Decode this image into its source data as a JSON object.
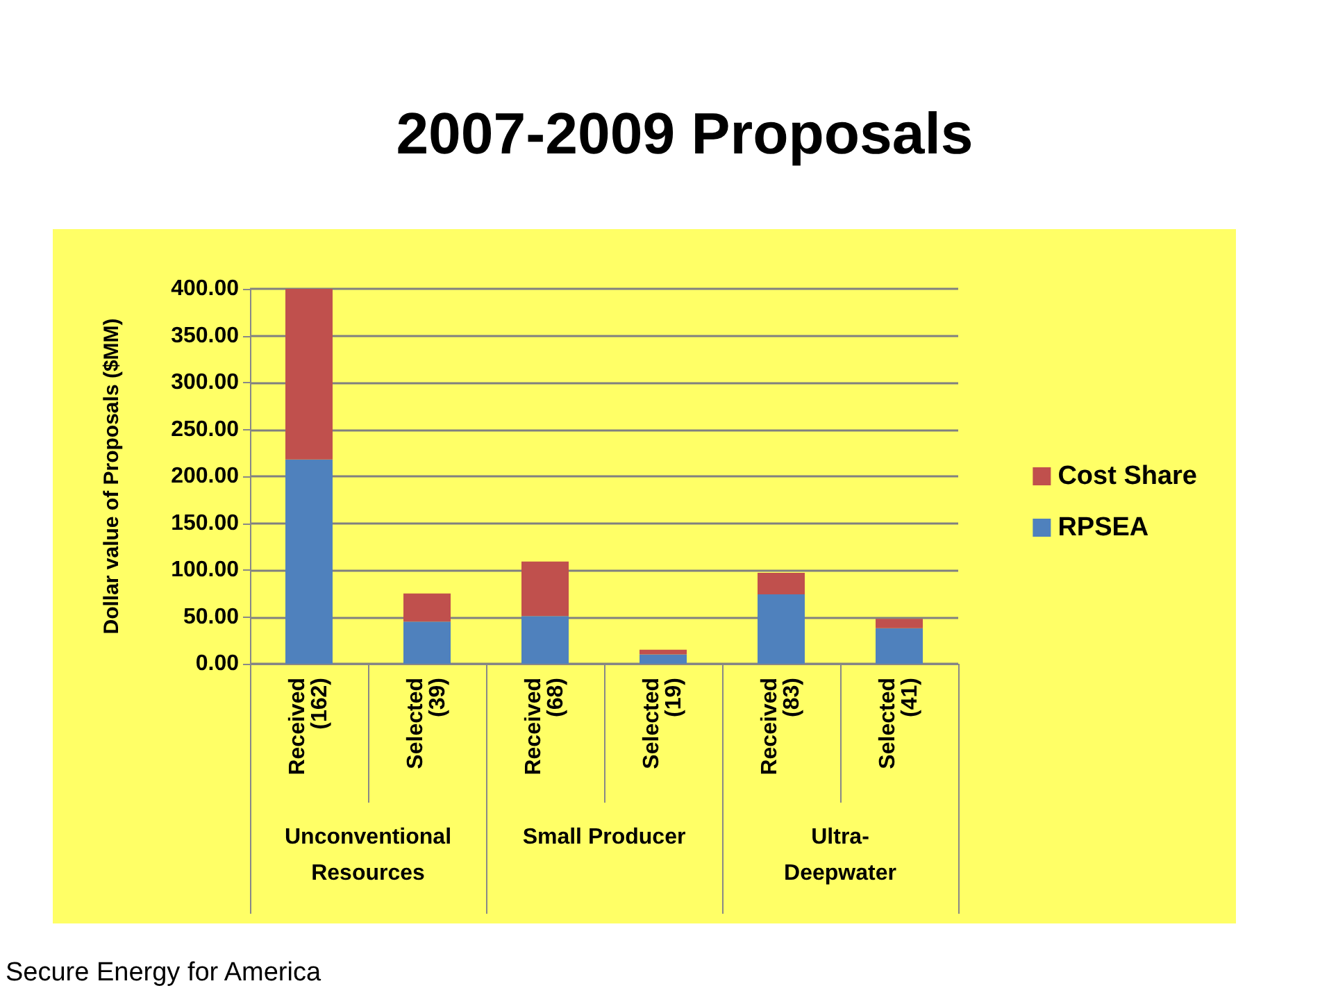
{
  "chart_data": {
    "type": "bar",
    "title": "2007-2009 Proposals",
    "ylabel": "Dollar value of Proposals ($MM)",
    "categories": [
      "Received\n(162)",
      "Selected\n(39)",
      "Received\n(68)",
      "Selected\n(19)",
      "Received\n(83)",
      "Selected\n(41)"
    ],
    "series": [
      {
        "name": "RPSEA",
        "color": "#4f81bd",
        "values": [
          218,
          45,
          51,
          10,
          74,
          38
        ]
      },
      {
        "name": "Cost Share",
        "color": "#c0504d",
        "values": [
          182,
          30,
          58,
          5,
          23,
          10
        ]
      }
    ],
    "stacked": true,
    "ylim": [
      0,
      400
    ],
    "yticks": [
      {
        "value": 0,
        "label": "0.00"
      },
      {
        "value": 50,
        "label": "50.00"
      },
      {
        "value": 100,
        "label": "100.00"
      },
      {
        "value": 150,
        "label": "150.00"
      },
      {
        "value": 200,
        "label": "200.00"
      },
      {
        "value": 250,
        "label": "250.00"
      },
      {
        "value": 300,
        "label": "300.00"
      },
      {
        "value": 350,
        "label": "350.00"
      },
      {
        "value": 400,
        "label": "400.00"
      }
    ],
    "grid": "y",
    "legend": "right",
    "annotations": [
      "Unconventional\nResources",
      "Small Producer",
      "Ultra-\nDeepwater",
      "Secure Energy for America"
    ]
  }
}
